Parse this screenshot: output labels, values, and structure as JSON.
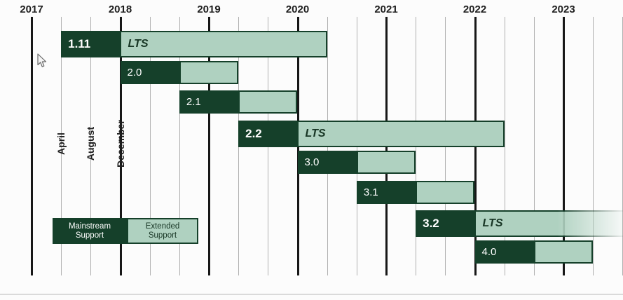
{
  "frame": {
    "background": "#fcfcfc"
  },
  "colors": {
    "mainstream": "#15402a",
    "extended": "#afd1c0",
    "bar_border": "#15402a",
    "grid_major": "#171717",
    "grid_minor": "#b0b0b0",
    "label_text": "#1f1f1f",
    "lts_text": "#173524",
    "divider": "#dadada"
  },
  "legend": {
    "mainstream_label": "Mainstream\nSupport",
    "extended_label": "Extended\nSupport"
  },
  "chart_data": {
    "type": "bar",
    "variant": "gantt-release-support-timeline",
    "title": "",
    "x_axis": {
      "unit": "year",
      "years": [
        2017,
        2018,
        2019,
        2020,
        2021,
        2022,
        2023
      ],
      "range": [
        2017,
        2023.7
      ],
      "minor_ticks_per_year": [
        "April",
        "August",
        "December"
      ],
      "month_labels": [
        {
          "label": "April",
          "t": 2017.333
        },
        {
          "label": "August",
          "t": 2017.667
        },
        {
          "label": "December",
          "t": 2018.0
        }
      ]
    },
    "legend": [
      "Mainstream Support",
      "Extended Support"
    ],
    "bars": [
      {
        "version": "1.11",
        "lts": true,
        "lts_label": "LTS",
        "mainstream_start": 2017.333,
        "mainstream_end": 2018.0,
        "extended_end": 2020.333,
        "clipped_right": false
      },
      {
        "version": "2.0",
        "lts": false,
        "lts_label": "",
        "mainstream_start": 2018.0,
        "mainstream_end": 2018.667,
        "extended_end": 2019.333,
        "clipped_right": false
      },
      {
        "version": "2.1",
        "lts": false,
        "lts_label": "",
        "mainstream_start": 2018.667,
        "mainstream_end": 2019.333,
        "extended_end": 2020.0,
        "clipped_right": false
      },
      {
        "version": "2.2",
        "lts": true,
        "lts_label": "LTS",
        "mainstream_start": 2019.333,
        "mainstream_end": 2020.0,
        "extended_end": 2022.333,
        "clipped_right": false
      },
      {
        "version": "3.0",
        "lts": false,
        "lts_label": "",
        "mainstream_start": 2020.0,
        "mainstream_end": 2020.667,
        "extended_end": 2021.333,
        "clipped_right": false
      },
      {
        "version": "3.1",
        "lts": false,
        "lts_label": "",
        "mainstream_start": 2020.667,
        "mainstream_end": 2021.333,
        "extended_end": 2022.0,
        "clipped_right": false
      },
      {
        "version": "3.2",
        "lts": true,
        "lts_label": "LTS",
        "mainstream_start": 2021.333,
        "mainstream_end": 2022.0,
        "extended_end": 2024.0,
        "clipped_right": true
      },
      {
        "version": "4.0",
        "lts": false,
        "lts_label": "",
        "mainstream_start": 2022.0,
        "mainstream_end": 2022.667,
        "extended_end": 2023.333,
        "clipped_right": false
      }
    ]
  }
}
